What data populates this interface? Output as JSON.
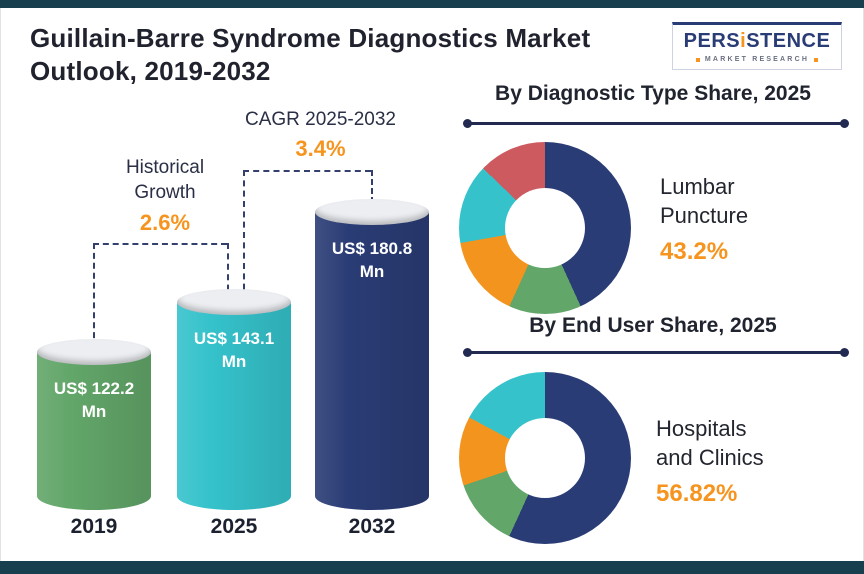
{
  "title": {
    "line1": "Guillain-Barre Syndrome Diagnostics Market",
    "line2": "Outlook, 2019-2032"
  },
  "logo": {
    "brand_pre": "PERS",
    "brand_accent": "i",
    "brand_post": "STENCE",
    "tagline": "MARKET RESEARCH"
  },
  "colors": {
    "navy": "#2a3c75",
    "teal": "#35c2cb",
    "green": "#62a669",
    "orange": "#f3941e",
    "red": "#cd5a5f",
    "accent_text": "#f6941e",
    "frame_strip": "#173f4d"
  },
  "chart_data": [
    {
      "type": "bar",
      "title": "Guillain-Barre Syndrome Diagnostics Market Outlook, 2019-2032",
      "ylabel": "US$ Mn",
      "categories": [
        "2019",
        "2025",
        "2032"
      ],
      "values": [
        122.2,
        143.1,
        180.8
      ],
      "bars": [
        {
          "year": "2019",
          "value": 122.2,
          "label_line1": "US$ 122.2",
          "label_line2": "Mn",
          "color": "#62a669"
        },
        {
          "year": "2025",
          "value": 143.1,
          "label_line1": "US$ 143.1",
          "label_line2": "Mn",
          "color": "#35c2cb"
        },
        {
          "year": "2032",
          "value": 180.8,
          "label_line1": "US$ 180.8",
          "label_line2": "Mn",
          "color": "#2a3c75"
        }
      ],
      "annotations": [
        {
          "label_line1": "Historical",
          "label_line2": "Growth",
          "value": "2.6%",
          "span": [
            "2019",
            "2025"
          ]
        },
        {
          "label_line1": "CAGR 2025-2032",
          "label_line2": "",
          "value": "3.4%",
          "span": [
            "2025",
            "2032"
          ]
        }
      ]
    },
    {
      "type": "pie",
      "donut": true,
      "title": "By Diagnostic Type Share, 2025",
      "legend_position": "none",
      "slices": [
        {
          "label": "Lumbar Puncture",
          "value": 43.2,
          "color": "#2a3c75"
        },
        {
          "label": "",
          "value": 13.6,
          "color": "#62a669"
        },
        {
          "label": "",
          "value": 15.4,
          "color": "#f3941e"
        },
        {
          "label": "",
          "value": 15.0,
          "color": "#35c2cb"
        },
        {
          "label": "",
          "value": 12.8,
          "color": "#cd5a5f"
        }
      ],
      "callout": {
        "line1": "Lumbar",
        "line2": "Puncture",
        "value": "43.2%"
      }
    },
    {
      "type": "pie",
      "donut": true,
      "title": "By End User Share, 2025",
      "legend_position": "none",
      "slices": [
        {
          "label": "Hospitals and Clinics",
          "value": 56.82,
          "color": "#2a3c75"
        },
        {
          "label": "",
          "value": 13.0,
          "color": "#62a669"
        },
        {
          "label": "",
          "value": 13.0,
          "color": "#f3941e"
        },
        {
          "label": "",
          "value": 17.18,
          "color": "#35c2cb"
        }
      ],
      "callout": {
        "line1": "Hospitals",
        "line2": "and Clinics",
        "value": "56.82%"
      }
    }
  ]
}
